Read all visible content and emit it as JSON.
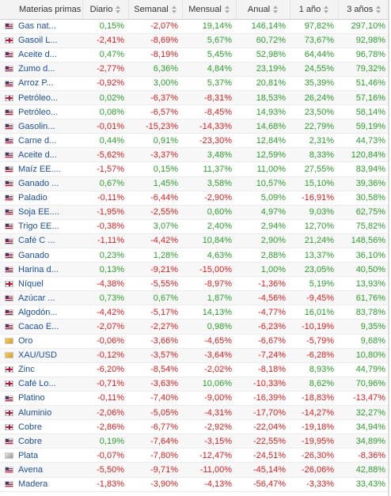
{
  "headers": [
    "Materias primas",
    "Diario",
    "Semanal",
    "Mensual",
    "Anual",
    "1 año",
    "3 años"
  ],
  "colors": {
    "positive": "#2aa02a",
    "negative": "#e21b1b",
    "link": "#1b4fa0"
  },
  "rows": [
    {
      "name": "Gas nat...",
      "flag": "us",
      "vals": [
        "0,15%",
        "-2,07%",
        "19,14%",
        "146,14%",
        "97,82%",
        "297,10%"
      ]
    },
    {
      "name": "Gasoil L...",
      "flag": "uk",
      "vals": [
        "-2,41%",
        "-8,69%",
        "5,67%",
        "60,72%",
        "73,67%",
        "92,98%"
      ]
    },
    {
      "name": "Aceite d...",
      "flag": "us",
      "vals": [
        "0,47%",
        "-8,19%",
        "5,45%",
        "52,98%",
        "64,44%",
        "96,78%"
      ]
    },
    {
      "name": "Zumo d...",
      "flag": "us",
      "vals": [
        "-2,77%",
        "6,36%",
        "4,84%",
        "23,19%",
        "24,55%",
        "79,32%"
      ]
    },
    {
      "name": "Arroz P...",
      "flag": "us",
      "vals": [
        "-0,92%",
        "3,00%",
        "5,37%",
        "20,81%",
        "35,39%",
        "51,46%"
      ]
    },
    {
      "name": "Petróleo...",
      "flag": "uk",
      "vals": [
        "0,02%",
        "-6,37%",
        "-8,31%",
        "18,53%",
        "26,24%",
        "57,16%"
      ]
    },
    {
      "name": "Petróleo...",
      "flag": "us",
      "vals": [
        "0,08%",
        "-6,57%",
        "-8,45%",
        "14,93%",
        "23,50%",
        "58,14%"
      ]
    },
    {
      "name": "Gasolin...",
      "flag": "us",
      "vals": [
        "-0,01%",
        "-15,23%",
        "-14,33%",
        "14,68%",
        "22,79%",
        "59,19%"
      ]
    },
    {
      "name": "Carne d...",
      "flag": "us",
      "vals": [
        "0,44%",
        "0,91%",
        "-23,30%",
        "12,84%",
        "2,31%",
        "44,73%"
      ]
    },
    {
      "name": "Aceite d...",
      "flag": "us",
      "vals": [
        "-5,62%",
        "-3,37%",
        "3,48%",
        "12,59%",
        "8,33%",
        "120,84%"
      ]
    },
    {
      "name": "Maíz EE....",
      "flag": "us",
      "vals": [
        "-1,57%",
        "0,15%",
        "11,37%",
        "11,00%",
        "27,55%",
        "83,94%"
      ]
    },
    {
      "name": "Ganado ...",
      "flag": "us",
      "vals": [
        "0,67%",
        "1,45%",
        "3,58%",
        "10,57%",
        "15,10%",
        "39,36%"
      ]
    },
    {
      "name": "Paladio",
      "flag": "us",
      "vals": [
        "-0,11%",
        "-6,44%",
        "-2,90%",
        "5,09%",
        "-16,91%",
        "30,58%"
      ]
    },
    {
      "name": "Soja EE....",
      "flag": "us",
      "vals": [
        "-1,95%",
        "-2,55%",
        "0,60%",
        "4,97%",
        "9,03%",
        "62,75%"
      ]
    },
    {
      "name": "Trigo EE...",
      "flag": "us",
      "vals": [
        "-0,38%",
        "3,07%",
        "2,40%",
        "2,94%",
        "12,70%",
        "75,82%"
      ]
    },
    {
      "name": "Café C ...",
      "flag": "us",
      "vals": [
        "-1,11%",
        "-4,42%",
        "10,84%",
        "2,90%",
        "21,24%",
        "148,56%"
      ]
    },
    {
      "name": "Ganado",
      "flag": "us",
      "vals": [
        "0,23%",
        "1,28%",
        "4,63%",
        "2,88%",
        "13,37%",
        "36,10%"
      ]
    },
    {
      "name": "Harina d...",
      "flag": "us",
      "vals": [
        "0,13%",
        "-9,21%",
        "-15,00%",
        "1,00%",
        "23,05%",
        "40,50%"
      ]
    },
    {
      "name": "Níquel",
      "flag": "uk",
      "vals": [
        "-4,38%",
        "-5,55%",
        "-8,97%",
        "-1,36%",
        "5,19%",
        "13,93%"
      ]
    },
    {
      "name": "Azúcar ...",
      "flag": "us",
      "vals": [
        "0,73%",
        "0,67%",
        "1,87%",
        "-4,56%",
        "-9,45%",
        "61,76%"
      ]
    },
    {
      "name": "Algodón...",
      "flag": "us",
      "vals": [
        "-4,42%",
        "-5,17%",
        "14,13%",
        "-4,77%",
        "16,01%",
        "83,78%"
      ]
    },
    {
      "name": "Cacao E...",
      "flag": "us",
      "vals": [
        "-2,07%",
        "-2,27%",
        "0,98%",
        "-6,23%",
        "-10,19%",
        "9,35%"
      ]
    },
    {
      "name": "Oro",
      "flag": "gold",
      "vals": [
        "-0,06%",
        "-3,66%",
        "-4,65%",
        "-6,67%",
        "-5,79%",
        "9,68%"
      ]
    },
    {
      "name": "XAU/USD",
      "flag": "gold",
      "vals": [
        "-0,12%",
        "-3,57%",
        "-3,64%",
        "-7,24%",
        "-6,28%",
        "10,80%"
      ]
    },
    {
      "name": "Zinc",
      "flag": "uk",
      "vals": [
        "-6,20%",
        "-8,54%",
        "-2,02%",
        "-8,18%",
        "8,93%",
        "44,79%"
      ]
    },
    {
      "name": "Café Lo...",
      "flag": "uk",
      "vals": [
        "-0,71%",
        "-3,63%",
        "10,06%",
        "-10,33%",
        "8,62%",
        "70,96%"
      ]
    },
    {
      "name": "Platino",
      "flag": "us",
      "vals": [
        "-0,11%",
        "-7,40%",
        "-9,00%",
        "-16,39%",
        "-18,83%",
        "-13,47%"
      ]
    },
    {
      "name": "Aluminio",
      "flag": "uk",
      "vals": [
        "-2,06%",
        "-5,05%",
        "-4,31%",
        "-17,70%",
        "-14,27%",
        "32,27%"
      ]
    },
    {
      "name": "Cobre",
      "flag": "uk",
      "vals": [
        "-2,86%",
        "-6,77%",
        "-2,92%",
        "-22,04%",
        "-19,18%",
        "34,94%"
      ]
    },
    {
      "name": "Cobre",
      "flag": "us",
      "vals": [
        "0,19%",
        "-7,64%",
        "-3,15%",
        "-22,55%",
        "-19,95%",
        "34,89%"
      ]
    },
    {
      "name": "Plata",
      "flag": "silver",
      "vals": [
        "-0,07%",
        "-7,80%",
        "-12,47%",
        "-24,51%",
        "-26,30%",
        "-8,36%"
      ]
    },
    {
      "name": "Avena",
      "flag": "us",
      "vals": [
        "-5,50%",
        "-9,71%",
        "-11,00%",
        "-45,14%",
        "-26,06%",
        "42,88%"
      ]
    },
    {
      "name": "Madera",
      "flag": "us",
      "vals": [
        "-1,83%",
        "-3,90%",
        "-4,13%",
        "-56,47%",
        "-3,33%",
        "33,43%"
      ]
    }
  ]
}
